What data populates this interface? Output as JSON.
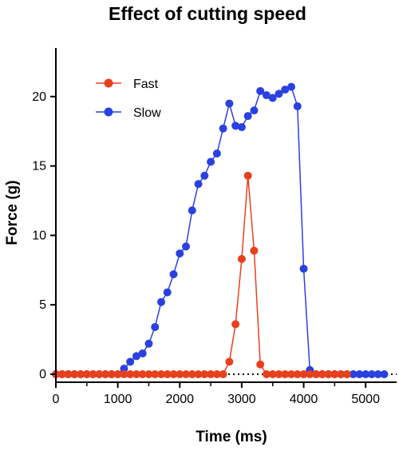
{
  "chart_data": {
    "type": "line",
    "title": "Effect of cutting speed",
    "xlabel": "Time (ms)",
    "ylabel": "Force (g)",
    "xlim": [
      0,
      5500
    ],
    "ylim": [
      0,
      23.5
    ],
    "xticks": [
      0,
      1000,
      2000,
      3000,
      4000,
      5000
    ],
    "yticks": [
      0,
      5,
      10,
      15,
      20
    ],
    "baseline": 0,
    "baseline_style": "dotted",
    "grid": false,
    "legend_position": "top-left",
    "series": [
      {
        "name": "Fast",
        "color": "#e8401c",
        "x": [
          0,
          100,
          200,
          300,
          400,
          500,
          600,
          700,
          800,
          900,
          1000,
          1100,
          1200,
          1300,
          1400,
          1500,
          1600,
          1700,
          1800,
          1900,
          2000,
          2100,
          2200,
          2300,
          2400,
          2500,
          2600,
          2700,
          2800,
          2900,
          3000,
          3100,
          3200,
          3300,
          3400,
          3500,
          3600,
          3700,
          3800,
          3900,
          4000,
          4100,
          4200,
          4300,
          4400,
          4500,
          4600,
          4700
        ],
        "y": [
          0,
          0,
          0,
          0,
          0,
          0,
          0,
          0,
          0,
          0,
          0,
          0,
          0,
          0,
          0,
          0,
          0,
          0,
          0,
          0,
          0,
          0,
          0,
          0,
          0,
          0,
          0,
          0,
          0.9,
          3.6,
          8.3,
          14.3,
          8.9,
          0.7,
          0,
          0,
          0,
          0,
          0,
          0,
          0,
          0,
          0,
          0,
          0,
          0,
          0,
          0
        ]
      },
      {
        "name": "Slow",
        "color": "#2b40e0",
        "x": [
          0,
          100,
          200,
          300,
          400,
          500,
          600,
          700,
          800,
          900,
          1000,
          1100,
          1200,
          1300,
          1400,
          1500,
          1600,
          1700,
          1800,
          1900,
          2000,
          2100,
          2200,
          2300,
          2400,
          2500,
          2600,
          2700,
          2800,
          2900,
          3000,
          3100,
          3200,
          3300,
          3400,
          3500,
          3600,
          3700,
          3800,
          3900,
          4000,
          4100,
          4200,
          4300,
          4400,
          4500,
          4600,
          4700,
          4800,
          4900,
          5000,
          5100,
          5200,
          5300
        ],
        "y": [
          0,
          0,
          0,
          0,
          0,
          0,
          0,
          0,
          0,
          0,
          0,
          0.4,
          0.9,
          1.3,
          1.5,
          2.2,
          3.4,
          5.2,
          5.9,
          7.2,
          8.7,
          9.2,
          11.8,
          13.7,
          14.3,
          15.3,
          15.9,
          17.7,
          19.5,
          17.9,
          17.8,
          18.6,
          19.0,
          20.4,
          20.1,
          19.9,
          20.2,
          20.5,
          20.7,
          19.3,
          7.6,
          0.3,
          0,
          0,
          0,
          0,
          0,
          0,
          0,
          0,
          0,
          0,
          0,
          0
        ]
      }
    ]
  }
}
